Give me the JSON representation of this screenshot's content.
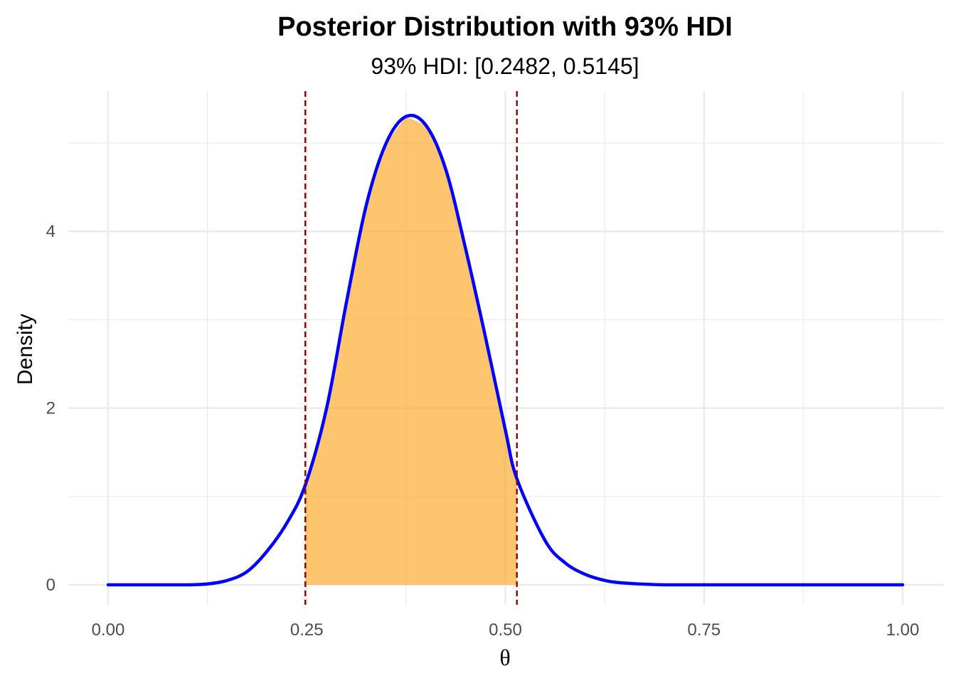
{
  "chart_data": {
    "type": "area",
    "title": "Posterior Distribution with 93% HDI",
    "subtitle": "93% HDI: [0.2482, 0.5145]",
    "xlabel": "θ",
    "ylabel": "Density",
    "xlim": [
      0,
      1
    ],
    "ylim": [
      0,
      5.3
    ],
    "x_ticks": [
      0,
      0.25,
      0.5,
      0.75,
      1.0
    ],
    "x_tick_labels": [
      "0.00",
      "0.25",
      "0.50",
      "0.75",
      "1.00"
    ],
    "y_ticks": [
      0,
      2,
      4
    ],
    "y_tick_labels": [
      "0",
      "2",
      "4"
    ],
    "grid": true,
    "legend": "none",
    "hdi": {
      "lower": 0.2482,
      "upper": 0.5145
    },
    "x": [
      0.0,
      0.05,
      0.1,
      0.125,
      0.15,
      0.175,
      0.2,
      0.225,
      0.2482,
      0.275,
      0.3,
      0.325,
      0.35,
      0.375,
      0.4,
      0.425,
      0.45,
      0.475,
      0.5,
      0.5145,
      0.55,
      0.575,
      0.6,
      0.625,
      0.65,
      0.7,
      0.75,
      0.8,
      0.9,
      1.0
    ],
    "y": [
      0.0,
      0.0,
      0.0,
      0.01,
      0.05,
      0.15,
      0.38,
      0.7,
      1.13,
      2.0,
      3.2,
      4.3,
      5.0,
      5.3,
      5.2,
      4.7,
      3.8,
      2.8,
      1.75,
      1.2,
      0.5,
      0.25,
      0.12,
      0.05,
      0.02,
      0.0,
      0.0,
      0.0,
      0.0,
      0.0
    ],
    "colors": {
      "curve": "#0000ff",
      "fill": "#fca620",
      "hdi_line": "#8b0000",
      "grid": "#ebebeb"
    }
  }
}
